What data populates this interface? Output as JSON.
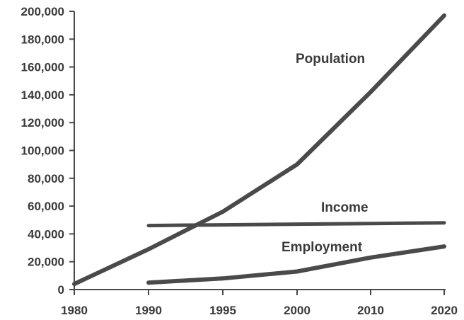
{
  "chart_data": {
    "type": "line",
    "title": "",
    "xlabel": "",
    "ylabel": "",
    "categories": [
      "1980",
      "1990",
      "1995",
      "2000",
      "2010",
      "2020"
    ],
    "ylim": [
      0,
      200000
    ],
    "y_ticks": [
      "0",
      "20,000",
      "40,000",
      "60,000",
      "80,000",
      "100,000",
      "120,000",
      "140,000",
      "160,000",
      "180,000",
      "200,000"
    ],
    "y_tick_values": [
      0,
      20000,
      40000,
      60000,
      80000,
      100000,
      120000,
      140000,
      160000,
      180000,
      200000
    ],
    "grid": false,
    "legend": "none (series labeled directly on chart)",
    "series": [
      {
        "name": "Population",
        "color": "#4a4a4a",
        "values": [
          4000,
          29000,
          56000,
          90000,
          142000,
          197000
        ]
      },
      {
        "name": "Income",
        "color": "#4a4a4a",
        "values": [
          null,
          46000,
          46500,
          47000,
          47500,
          48000
        ]
      },
      {
        "name": "Employment",
        "color": "#4a4a4a",
        "values": [
          null,
          5000,
          8000,
          13000,
          23000,
          31000
        ]
      }
    ]
  }
}
